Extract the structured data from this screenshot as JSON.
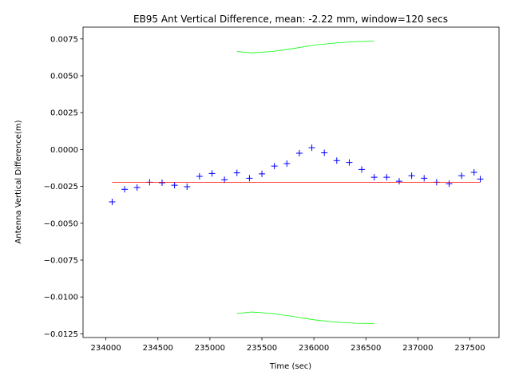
{
  "chart_data": {
    "type": "scatter",
    "title": "EB95 Ant Vertical Difference, mean: -2.22 mm, window=120 secs",
    "xlabel": "Time (sec)",
    "ylabel": "Antenna Vertical Difference(m)",
    "xlim": [
      233780,
      237780
    ],
    "ylim": [
      -0.01275,
      0.0083
    ],
    "x_ticks": [
      234000,
      234500,
      235000,
      235500,
      236000,
      236500,
      237000,
      237500
    ],
    "x_tick_labels": [
      "234000",
      "234500",
      "235000",
      "235500",
      "236000",
      "236500",
      "237000",
      "237500"
    ],
    "y_ticks": [
      0.0075,
      0.005,
      0.0025,
      0.0,
      -0.0025,
      -0.005,
      -0.0075,
      -0.01,
      -0.0125
    ],
    "y_tick_labels": [
      "0.0075",
      "0.0050",
      "0.0025",
      "0.0000",
      "−0.0025",
      "−0.0050",
      "−0.0075",
      "−0.0100",
      "−0.0125"
    ],
    "grid": false,
    "series": [
      {
        "kind": "points",
        "marker": "+",
        "color": "#0000ff",
        "x": [
          234060,
          234180,
          234300,
          234420,
          234540,
          234660,
          234780,
          234900,
          235020,
          235140,
          235260,
          235380,
          235500,
          235620,
          235740,
          235860,
          235980,
          236100,
          236220,
          236340,
          236460,
          236580,
          236700,
          236820,
          236940,
          237060,
          237180,
          237300,
          237420,
          237540,
          237600
        ],
        "y": [
          -0.00355,
          -0.0027,
          -0.00258,
          -0.00222,
          -0.00225,
          -0.00242,
          -0.00252,
          -0.00182,
          -0.00162,
          -0.00205,
          -0.00158,
          -0.00195,
          -0.00165,
          -0.00112,
          -0.00095,
          -0.00025,
          0.00012,
          -0.00022,
          -0.00075,
          -0.00088,
          -0.00135,
          -0.00188,
          -0.00188,
          -0.00215,
          -0.00178,
          -0.00195,
          -0.00222,
          -0.00232,
          -0.00178,
          -0.00155,
          -0.002
        ]
      },
      {
        "kind": "line",
        "color": "#ff0000",
        "x": [
          234060,
          237600
        ],
        "y": [
          -0.00222,
          -0.00222
        ]
      },
      {
        "kind": "line",
        "color": "#00ff00",
        "x": [
          235260,
          235400,
          235600,
          235800,
          236000,
          236200,
          236400,
          236580
        ],
        "y": [
          0.00665,
          0.00655,
          0.00665,
          0.00685,
          0.00708,
          0.00722,
          0.00732,
          0.00735
        ]
      },
      {
        "kind": "line",
        "color": "#00ff00",
        "x": [
          235260,
          235400,
          235600,
          235800,
          236000,
          236200,
          236400,
          236580
        ],
        "y": [
          -0.01112,
          -0.01102,
          -0.01112,
          -0.01132,
          -0.01155,
          -0.0117,
          -0.01178,
          -0.0118
        ]
      }
    ]
  }
}
